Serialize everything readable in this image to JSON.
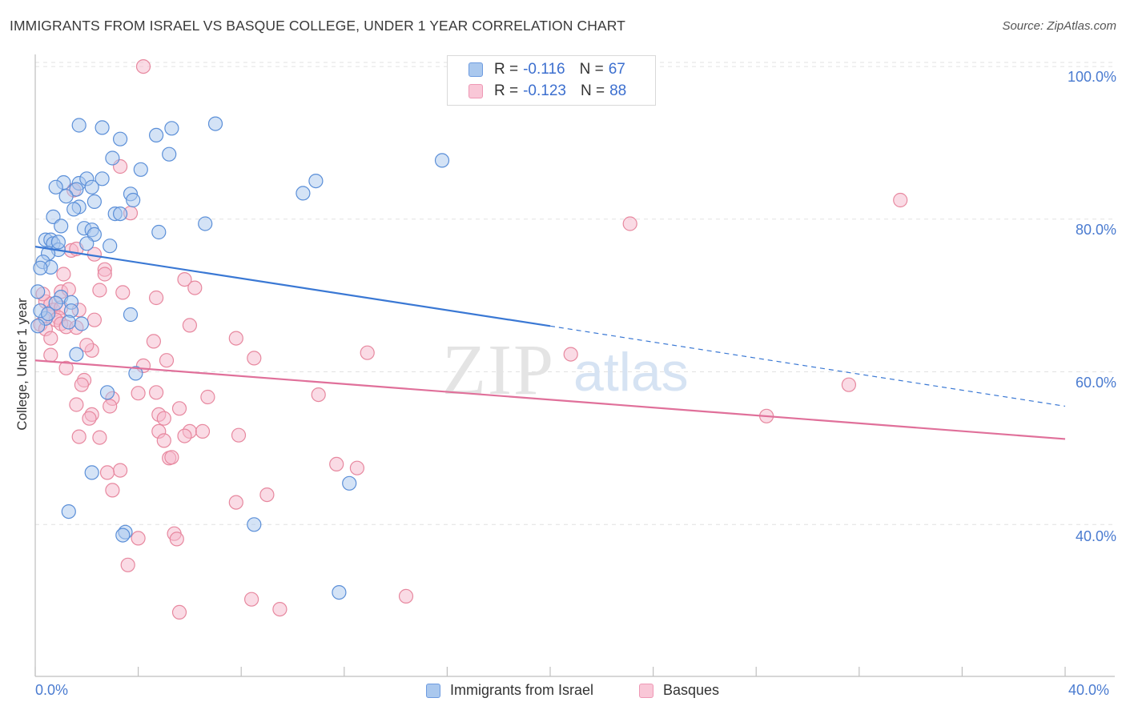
{
  "title": "IMMIGRANTS FROM ISRAEL VS BASQUE COLLEGE, UNDER 1 YEAR CORRELATION CHART",
  "source": "Source: ZipAtlas.com",
  "watermark": {
    "zip": "ZIP",
    "atlas": "atlas"
  },
  "colors": {
    "blue": "#3a78d4",
    "blue_fill": "#aac8ee",
    "pink": "#e0709a",
    "pink_fill": "#f5b8cc",
    "text_blue": "#3c6fcf"
  },
  "legend": {
    "series": [
      {
        "r_label": "R =",
        "r_value": "-0.116",
        "n_label": "N =",
        "n_value": "67"
      },
      {
        "r_label": "R =",
        "r_value": "-0.123",
        "n_label": "N =",
        "n_value": "88"
      }
    ]
  },
  "bottom_legend": [
    "Immigrants from Israel",
    "Basques"
  ],
  "chart_data": {
    "type": "scatter",
    "title": "IMMIGRANTS FROM ISRAEL VS BASQUE COLLEGE, UNDER 1 YEAR CORRELATION CHART",
    "xlabel": "",
    "ylabel": "College, Under 1 year",
    "xlim": [
      0,
      40
    ],
    "ylim": [
      20,
      102
    ],
    "x_tick_labels": [
      "0.0%",
      "40.0%"
    ],
    "y_ticks": [
      40,
      60,
      80,
      100
    ],
    "y_tick_labels": [
      "40.0%",
      "60.0%",
      "80.0%",
      "100.0%"
    ],
    "grid": true,
    "series": [
      {
        "name": "Immigrants from Israel",
        "r": -0.116,
        "n": 67,
        "trend": {
          "x0": 0,
          "y0": 76.4,
          "x1": 20,
          "y1": 66.0,
          "dash_x1": 40,
          "dash_y1": 55.5
        },
        "points": [
          [
            1.7,
            92.3
          ],
          [
            2.6,
            92.0
          ],
          [
            3.3,
            90.5
          ],
          [
            4.7,
            91.0
          ],
          [
            5.3,
            91.9
          ],
          [
            7.0,
            92.5
          ],
          [
            3.0,
            88.0
          ],
          [
            5.2,
            88.5
          ],
          [
            4.1,
            86.5
          ],
          [
            15.8,
            87.7
          ],
          [
            1.1,
            84.8
          ],
          [
            1.7,
            84.7
          ],
          [
            2.0,
            85.3
          ],
          [
            2.6,
            85.3
          ],
          [
            2.2,
            84.2
          ],
          [
            1.6,
            83.9
          ],
          [
            0.8,
            84.2
          ],
          [
            1.2,
            83.0
          ],
          [
            3.7,
            83.3
          ],
          [
            10.9,
            85.0
          ],
          [
            10.4,
            83.4
          ],
          [
            2.3,
            82.3
          ],
          [
            3.8,
            82.5
          ],
          [
            1.7,
            81.6
          ],
          [
            1.5,
            81.3
          ],
          [
            3.1,
            80.7
          ],
          [
            3.3,
            80.7
          ],
          [
            0.7,
            80.3
          ],
          [
            6.6,
            79.4
          ],
          [
            1.0,
            79.1
          ],
          [
            1.9,
            78.8
          ],
          [
            2.2,
            78.6
          ],
          [
            2.3,
            78.0
          ],
          [
            4.8,
            78.3
          ],
          [
            0.4,
            77.3
          ],
          [
            0.6,
            77.3
          ],
          [
            0.7,
            76.8
          ],
          [
            0.9,
            76.0
          ],
          [
            0.5,
            75.5
          ],
          [
            2.0,
            76.8
          ],
          [
            0.3,
            74.4
          ],
          [
            0.6,
            73.7
          ],
          [
            0.2,
            73.6
          ],
          [
            0.1,
            70.5
          ],
          [
            1.0,
            69.8
          ],
          [
            0.8,
            69.0
          ],
          [
            1.4,
            69.1
          ],
          [
            1.4,
            68.0
          ],
          [
            0.4,
            67.0
          ],
          [
            1.8,
            66.3
          ],
          [
            0.1,
            66.0
          ],
          [
            3.7,
            67.5
          ],
          [
            1.6,
            62.3
          ],
          [
            3.9,
            59.8
          ],
          [
            2.8,
            57.3
          ],
          [
            2.2,
            46.8
          ],
          [
            12.2,
            45.4
          ],
          [
            1.3,
            41.7
          ],
          [
            8.5,
            40.0
          ],
          [
            3.5,
            39.0
          ],
          [
            3.4,
            38.6
          ],
          [
            11.8,
            31.1
          ],
          [
            0.2,
            68.0
          ],
          [
            1.3,
            66.5
          ],
          [
            0.9,
            77.0
          ],
          [
            2.9,
            76.5
          ],
          [
            0.5,
            67.6
          ]
        ]
      },
      {
        "name": "Basques",
        "r": -0.123,
        "n": 88,
        "trend": {
          "x0": 0,
          "y0": 61.5,
          "x1": 40,
          "y1": 51.2
        },
        "points": [
          [
            4.2,
            100.0
          ],
          [
            3.3,
            86.9
          ],
          [
            1.5,
            83.8
          ],
          [
            3.7,
            80.8
          ],
          [
            33.6,
            82.5
          ],
          [
            23.1,
            79.4
          ],
          [
            1.4,
            75.9
          ],
          [
            1.6,
            76.1
          ],
          [
            2.3,
            75.4
          ],
          [
            1.1,
            72.8
          ],
          [
            2.7,
            73.4
          ],
          [
            2.7,
            72.8
          ],
          [
            5.8,
            72.1
          ],
          [
            6.2,
            71.0
          ],
          [
            1.0,
            70.5
          ],
          [
            1.3,
            70.8
          ],
          [
            2.5,
            70.7
          ],
          [
            3.4,
            70.4
          ],
          [
            4.7,
            69.7
          ],
          [
            0.4,
            69.2
          ],
          [
            0.6,
            68.9
          ],
          [
            0.7,
            68.1
          ],
          [
            1.0,
            68.4
          ],
          [
            0.5,
            67.6
          ],
          [
            1.7,
            68.1
          ],
          [
            0.9,
            67.1
          ],
          [
            0.8,
            66.8
          ],
          [
            1.0,
            66.3
          ],
          [
            1.2,
            65.9
          ],
          [
            2.3,
            66.8
          ],
          [
            1.6,
            65.8
          ],
          [
            6.0,
            66.1
          ],
          [
            7.8,
            64.4
          ],
          [
            4.6,
            64.0
          ],
          [
            0.6,
            62.2
          ],
          [
            2.2,
            62.8
          ],
          [
            8.5,
            61.8
          ],
          [
            12.9,
            62.5
          ],
          [
            20.8,
            62.3
          ],
          [
            5.1,
            61.5
          ],
          [
            4.2,
            60.8
          ],
          [
            1.9,
            58.9
          ],
          [
            1.8,
            58.3
          ],
          [
            4.7,
            57.3
          ],
          [
            4.0,
            57.2
          ],
          [
            6.7,
            56.7
          ],
          [
            11.0,
            57.0
          ],
          [
            3.0,
            56.5
          ],
          [
            1.6,
            55.7
          ],
          [
            2.9,
            55.5
          ],
          [
            5.6,
            55.2
          ],
          [
            4.8,
            54.4
          ],
          [
            2.2,
            54.4
          ],
          [
            2.1,
            53.9
          ],
          [
            5.0,
            53.9
          ],
          [
            4.8,
            52.2
          ],
          [
            6.0,
            52.2
          ],
          [
            6.5,
            52.2
          ],
          [
            5.8,
            51.6
          ],
          [
            7.9,
            51.7
          ],
          [
            1.7,
            51.5
          ],
          [
            2.5,
            51.4
          ],
          [
            5.0,
            51.0
          ],
          [
            28.4,
            54.2
          ],
          [
            31.6,
            58.3
          ],
          [
            5.2,
            48.7
          ],
          [
            5.3,
            48.8
          ],
          [
            11.7,
            47.9
          ],
          [
            12.5,
            47.4
          ],
          [
            3.3,
            47.1
          ],
          [
            2.8,
            46.8
          ],
          [
            3.0,
            44.5
          ],
          [
            9.0,
            43.9
          ],
          [
            7.8,
            42.9
          ],
          [
            5.4,
            38.8
          ],
          [
            5.5,
            38.1
          ],
          [
            4.0,
            38.2
          ],
          [
            3.6,
            34.7
          ],
          [
            8.4,
            30.2
          ],
          [
            9.5,
            28.9
          ],
          [
            14.4,
            30.6
          ],
          [
            5.6,
            28.5
          ],
          [
            0.2,
            66.2
          ],
          [
            0.4,
            65.6
          ],
          [
            0.3,
            70.2
          ],
          [
            0.6,
            64.4
          ],
          [
            2.0,
            63.5
          ],
          [
            1.2,
            60.5
          ]
        ]
      }
    ]
  }
}
